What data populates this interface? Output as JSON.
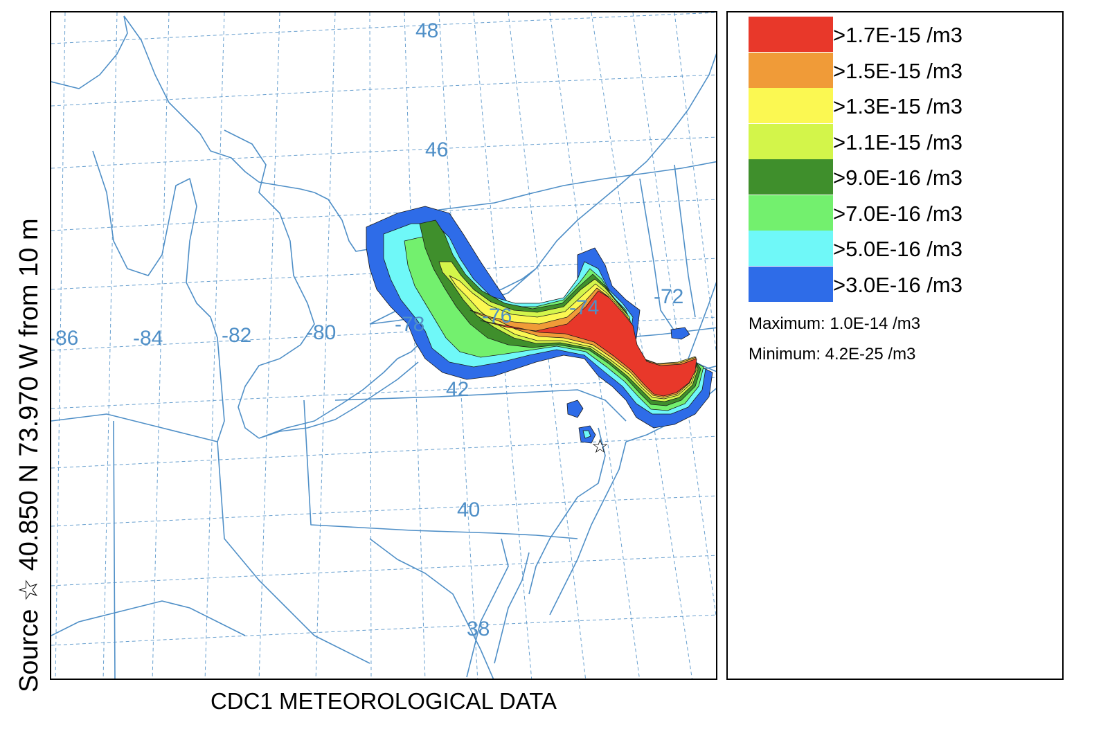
{
  "side_label": "Source ☆ 40.850 N 73.970 W from 10 m",
  "bottom_caption": "CDC1 METEOROLOGICAL DATA",
  "map": {
    "longitude_labels": [
      {
        "name": "lon-86",
        "text": "-86"
      },
      {
        "name": "lon-84",
        "text": "-84"
      },
      {
        "name": "lon-82",
        "text": "-82"
      },
      {
        "name": "lon-80",
        "text": "-80"
      },
      {
        "name": "lon-78",
        "text": "-78"
      },
      {
        "name": "lon-76",
        "text": "-76"
      },
      {
        "name": "lon-74",
        "text": "-74"
      },
      {
        "name": "lon-72",
        "text": "-72"
      }
    ],
    "latitude_labels": [
      {
        "name": "lat-48",
        "text": "48"
      },
      {
        "name": "lat-46",
        "text": "46"
      },
      {
        "name": "lat-42",
        "text": "42"
      },
      {
        "name": "lat-40",
        "text": "40"
      },
      {
        "name": "lat-38",
        "text": "38"
      }
    ],
    "source_marker": "☆",
    "colors": {
      "boundary": "#4f8fc7",
      "grid": "#4f8fc7"
    }
  },
  "legend": {
    "entries": [
      {
        "label": ">1.7E-15 /m3",
        "color": "#e8382a"
      },
      {
        "label": ">1.5E-15 /m3",
        "color": "#f09b38"
      },
      {
        "label": ">1.3E-15 /m3",
        "color": "#fbf852"
      },
      {
        "label": ">1.1E-15 /m3",
        "color": "#d3f54a"
      },
      {
        "label": ">9.0E-16 /m3",
        "color": "#3f8f2c"
      },
      {
        "label": ">7.0E-16 /m3",
        "color": "#73f06e"
      },
      {
        "label": ">5.0E-16 /m3",
        "color": "#6ff8f8"
      },
      {
        "label": ">3.0E-16 /m3",
        "color": "#2e6ce8"
      }
    ],
    "maximum": "Maximum: 1.0E-14 /m3",
    "minimum": "Minimum: 4.2E-25 /m3"
  }
}
